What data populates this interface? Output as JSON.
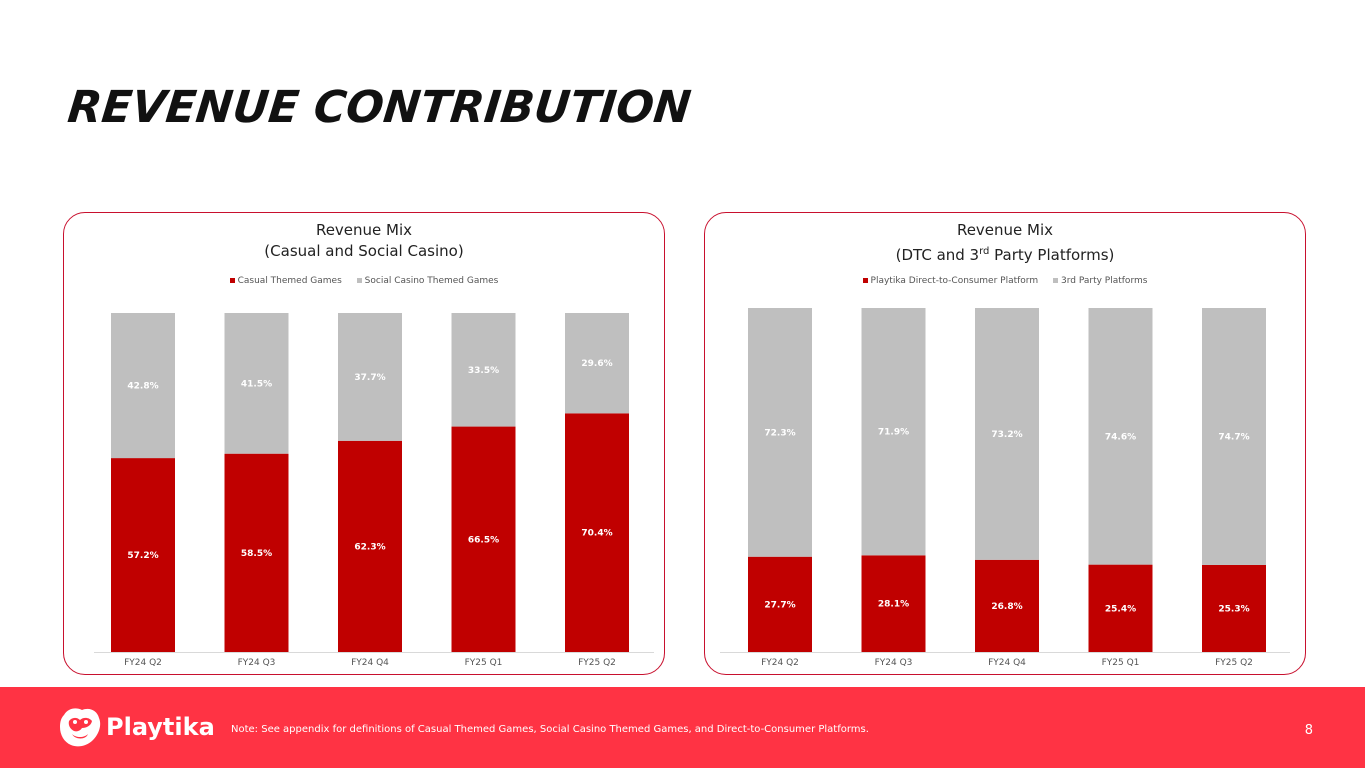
{
  "slide": {
    "title": "REVENUE CONTRIBUTION",
    "page_number": "8"
  },
  "footer": {
    "brand": "Playtika",
    "note": "Note:  See appendix for definitions of Casual Themed Games, Social Casino Themed Games, and Direct-to-Consumer Platforms.",
    "background_color": "#ff3344"
  },
  "colors": {
    "primary": "#c00000",
    "secondary": "#bfbfbf"
  },
  "chart_data": [
    {
      "type": "bar",
      "stacked": true,
      "title_line1": "Revenue Mix",
      "title_line2": "(Casual and Social Casino)",
      "categories": [
        "FY24 Q2",
        "FY24 Q3",
        "FY24 Q4",
        "FY25 Q1",
        "FY25 Q2"
      ],
      "series": [
        {
          "name": "Casual Themed Games",
          "values": [
            57.2,
            58.5,
            62.3,
            66.5,
            70.4
          ],
          "labels": [
            "57.2%",
            "58.5%",
            "62.3%",
            "66.5%",
            "70.4%"
          ],
          "color": "#c00000"
        },
        {
          "name": "Social Casino Themed Games",
          "values": [
            42.8,
            41.5,
            37.7,
            33.5,
            29.6
          ],
          "labels": [
            "42.8%",
            "41.5%",
            "37.7%",
            "33.5%",
            "29.6%"
          ],
          "color": "#bfbfbf"
        }
      ],
      "ylim": [
        0,
        100
      ],
      "legend": "top",
      "grid": false
    },
    {
      "type": "bar",
      "stacked": true,
      "title_line1": "Revenue Mix",
      "title_line2_pre": "(DTC and 3",
      "title_line2_sup": "rd",
      "title_line2_post": " Party Platforms)",
      "categories": [
        "FY24 Q2",
        "FY24 Q3",
        "FY24 Q4",
        "FY25 Q1",
        "FY25 Q2"
      ],
      "series": [
        {
          "name": "Playtika Direct-to-Consumer Platform",
          "values": [
            27.7,
            28.1,
            26.8,
            25.4,
            25.3
          ],
          "labels": [
            "27.7%",
            "28.1%",
            "26.8%",
            "25.4%",
            "25.3%"
          ],
          "color": "#c00000"
        },
        {
          "name": "3rd Party Platforms",
          "values": [
            72.3,
            71.9,
            73.2,
            74.6,
            74.7
          ],
          "labels": [
            "72.3%",
            "71.9%",
            "73.2%",
            "74.6%",
            "74.7%"
          ],
          "color": "#bfbfbf"
        }
      ],
      "ylim": [
        0,
        100
      ],
      "legend": "top",
      "grid": false
    }
  ]
}
